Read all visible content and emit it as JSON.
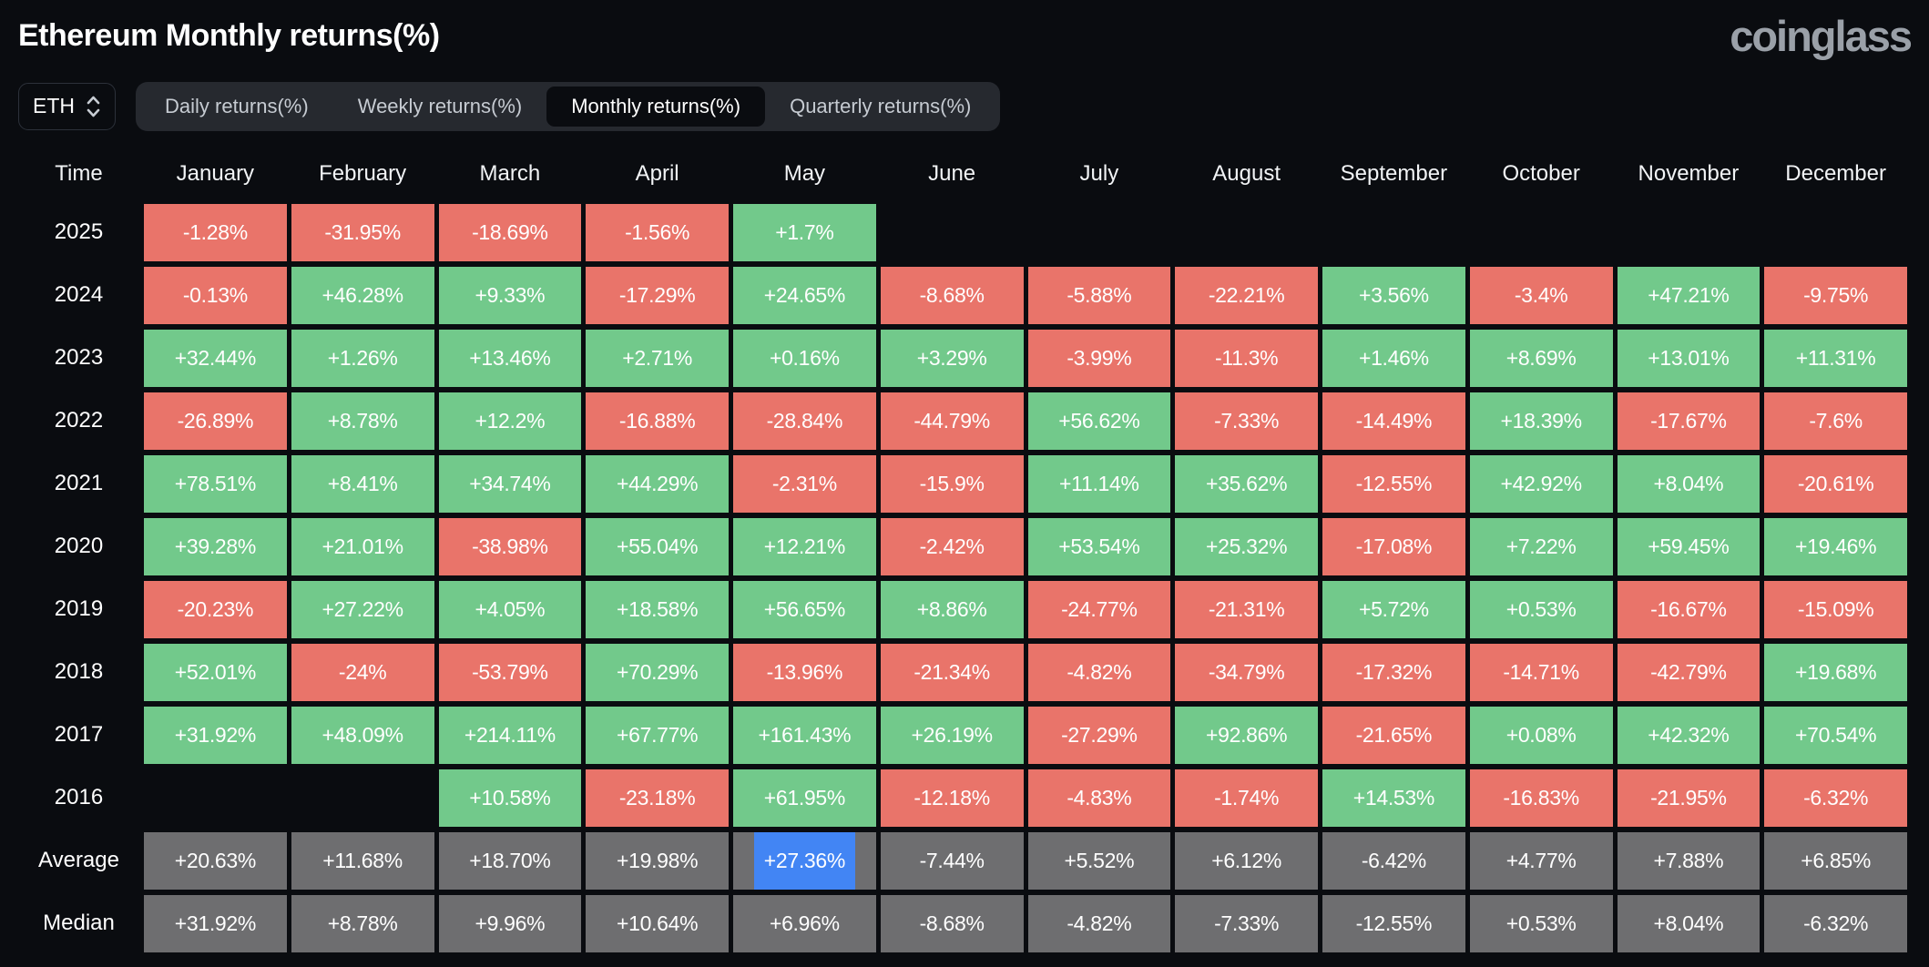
{
  "header": {
    "title": "Ethereum Monthly returns(%)",
    "brand": "coinglass"
  },
  "controls": {
    "symbol_select": {
      "value": "ETH"
    },
    "tabs": [
      {
        "label": "Daily returns(%)",
        "active": false
      },
      {
        "label": "Weekly returns(%)",
        "active": false
      },
      {
        "label": "Monthly returns(%)",
        "active": true
      },
      {
        "label": "Quarterly returns(%)",
        "active": false
      }
    ]
  },
  "chart_data": {
    "type": "heatmap",
    "title": "Ethereum Monthly returns(%)",
    "corner_label": "Time",
    "columns": [
      "January",
      "February",
      "March",
      "April",
      "May",
      "June",
      "July",
      "August",
      "September",
      "October",
      "November",
      "December"
    ],
    "rows": [
      {
        "label": "2025",
        "kind": "year",
        "values": [
          "-1.28%",
          "-31.95%",
          "-18.69%",
          "-1.56%",
          "+1.7%",
          "",
          "",
          "",
          "",
          "",
          "",
          ""
        ]
      },
      {
        "label": "2024",
        "kind": "year",
        "values": [
          "-0.13%",
          "+46.28%",
          "+9.33%",
          "-17.29%",
          "+24.65%",
          "-8.68%",
          "-5.88%",
          "-22.21%",
          "+3.56%",
          "-3.4%",
          "+47.21%",
          "-9.75%"
        ]
      },
      {
        "label": "2023",
        "kind": "year",
        "values": [
          "+32.44%",
          "+1.26%",
          "+13.46%",
          "+2.71%",
          "+0.16%",
          "+3.29%",
          "-3.99%",
          "-11.3%",
          "+1.46%",
          "+8.69%",
          "+13.01%",
          "+11.31%"
        ]
      },
      {
        "label": "2022",
        "kind": "year",
        "values": [
          "-26.89%",
          "+8.78%",
          "+12.2%",
          "-16.88%",
          "-28.84%",
          "-44.79%",
          "+56.62%",
          "-7.33%",
          "-14.49%",
          "+18.39%",
          "-17.67%",
          "-7.6%"
        ]
      },
      {
        "label": "2021",
        "kind": "year",
        "values": [
          "+78.51%",
          "+8.41%",
          "+34.74%",
          "+44.29%",
          "-2.31%",
          "-15.9%",
          "+11.14%",
          "+35.62%",
          "-12.55%",
          "+42.92%",
          "+8.04%",
          "-20.61%"
        ]
      },
      {
        "label": "2020",
        "kind": "year",
        "values": [
          "+39.28%",
          "+21.01%",
          "-38.98%",
          "+55.04%",
          "+12.21%",
          "-2.42%",
          "+53.54%",
          "+25.32%",
          "-17.08%",
          "+7.22%",
          "+59.45%",
          "+19.46%"
        ]
      },
      {
        "label": "2019",
        "kind": "year",
        "values": [
          "-20.23%",
          "+27.22%",
          "+4.05%",
          "+18.58%",
          "+56.65%",
          "+8.86%",
          "-24.77%",
          "-21.31%",
          "+5.72%",
          "+0.53%",
          "-16.67%",
          "-15.09%"
        ]
      },
      {
        "label": "2018",
        "kind": "year",
        "values": [
          "+52.01%",
          "-24%",
          "-53.79%",
          "+70.29%",
          "-13.96%",
          "-21.34%",
          "-4.82%",
          "-34.79%",
          "-17.32%",
          "-14.71%",
          "-42.79%",
          "+19.68%"
        ]
      },
      {
        "label": "2017",
        "kind": "year",
        "values": [
          "+31.92%",
          "+48.09%",
          "+214.11%",
          "+67.77%",
          "+161.43%",
          "+26.19%",
          "-27.29%",
          "+92.86%",
          "-21.65%",
          "+0.08%",
          "+42.32%",
          "+70.54%"
        ]
      },
      {
        "label": "2016",
        "kind": "year",
        "values": [
          "",
          "",
          "+10.58%",
          "-23.18%",
          "+61.95%",
          "-12.18%",
          "-4.83%",
          "-1.74%",
          "+14.53%",
          "-16.83%",
          "-21.95%",
          "-6.32%"
        ]
      },
      {
        "label": "Average",
        "kind": "summary",
        "values": [
          "+20.63%",
          "+11.68%",
          "+18.70%",
          "+19.98%",
          "+27.36%",
          "-7.44%",
          "+5.52%",
          "+6.12%",
          "-6.42%",
          "+4.77%",
          "+7.88%",
          "+6.85%"
        ]
      },
      {
        "label": "Median",
        "kind": "summary",
        "values": [
          "+31.92%",
          "+8.78%",
          "+9.96%",
          "+10.64%",
          "+6.96%",
          "-8.68%",
          "-4.82%",
          "-7.33%",
          "-12.55%",
          "+0.53%",
          "+8.04%",
          "-6.32%"
        ]
      }
    ],
    "highlighted_cell": {
      "row": "Average",
      "column": "May",
      "value": "+27.36%"
    },
    "colors": {
      "positive": "#72c98b",
      "negative": "#e9746a",
      "summary": "#6e6e70",
      "highlight": "#4285f4",
      "background": "#0a0c10"
    },
    "legend_position": "none",
    "grid": false
  }
}
